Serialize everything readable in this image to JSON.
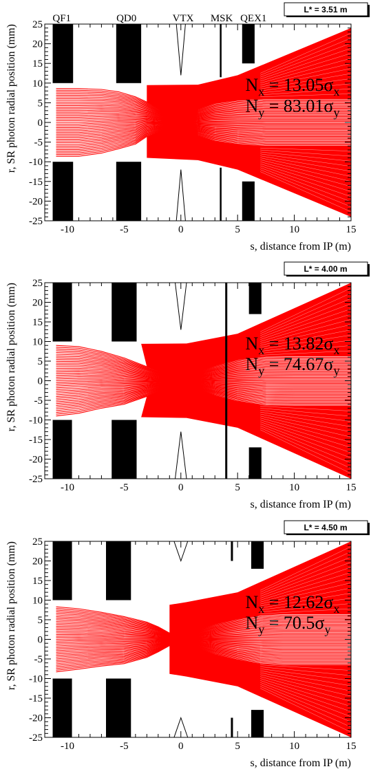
{
  "chart_data": [
    {
      "type": "line",
      "lstar_label": "L* = 3.51 m",
      "xlabel": "s, distance from IP (m)",
      "ylabel": "r, SR photon radial position (mm)",
      "xlim": [
        -12,
        15
      ],
      "ylim": [
        -25,
        25
      ],
      "x_ticks": [
        -10,
        -5,
        0,
        5,
        10,
        15
      ],
      "y_ticks": [
        -25,
        -20,
        -15,
        -10,
        -5,
        0,
        5,
        10,
        15,
        20,
        25
      ],
      "grid": false,
      "magnet_labels": [
        {
          "text": "QF1",
          "x": -10.5
        },
        {
          "text": "QD0",
          "x": -4.8
        },
        {
          "text": "VTX",
          "x": 0.2
        },
        {
          "text": "MSK",
          "x": 3.6
        },
        {
          "text": "QEX1",
          "x": 6.4
        }
      ],
      "magnets": [
        {
          "name": "QF1",
          "s_start": -11.3,
          "s_end": -9.5,
          "aperture_mm": 10
        },
        {
          "name": "QD0",
          "s_start": -5.7,
          "s_end": -3.5,
          "aperture_mm": 10
        },
        {
          "name": "QEX1",
          "s_start": 5.4,
          "s_end": 6.5,
          "aperture_mm": 15
        }
      ],
      "vtx_profile": {
        "s": [
          -0.4,
          0,
          0.4
        ],
        "aperture_mm": [
          25,
          12,
          25
        ]
      },
      "msk": {
        "s": 3.51
      },
      "envelope_top": {
        "s": [
          -11,
          -9,
          -7,
          -5.5,
          -4,
          -3,
          -2,
          -1,
          0,
          1,
          1.5,
          3,
          5,
          7.5,
          10,
          15
        ],
        "r_mm": [
          8.6,
          8.6,
          8.4,
          7.8,
          6.5,
          5.2,
          3.5,
          1.8,
          0,
          1.8,
          3.4,
          4.8,
          5.6,
          6,
          6,
          6
        ]
      },
      "envelope_bottom": {
        "s": [
          -11,
          -9,
          -7,
          -5.5,
          -4,
          -3,
          -2,
          -1,
          0,
          1,
          1.5,
          3,
          5,
          7.5,
          10,
          15
        ],
        "r_mm": [
          -8.6,
          -8.6,
          -7.8,
          -6.7,
          -5.5,
          -3.6,
          -2.5,
          -1.2,
          0,
          -1.8,
          -3.4,
          -4.7,
          -5.5,
          -6,
          -6,
          -6
        ]
      },
      "fan_top": {
        "s": [
          -3,
          1.5,
          5,
          15
        ],
        "r_mm": [
          9.5,
          9.6,
          12,
          24
        ]
      },
      "fan_bottom": {
        "s": [
          -3,
          1.5,
          5,
          15
        ],
        "r_mm": [
          -9,
          -9.6,
          -12,
          -24
        ]
      },
      "annotation": {
        "nx_value": "13.05",
        "ny_value": "83.01"
      }
    },
    {
      "type": "line",
      "lstar_label": "L* = 4.00 m",
      "xlabel": "s, distance from IP (m)",
      "ylabel": "r, SR photon radial position (mm)",
      "xlim": [
        -12,
        15
      ],
      "ylim": [
        -25,
        25
      ],
      "x_ticks": [
        -10,
        -5,
        0,
        5,
        10,
        15
      ],
      "y_ticks": [
        -25,
        -20,
        -15,
        -10,
        -5,
        0,
        5,
        10,
        15,
        20,
        25
      ],
      "grid": false,
      "magnet_labels": [],
      "magnets": [
        {
          "name": "QF1",
          "s_start": -11.3,
          "s_end": -9.6,
          "aperture_mm": 10
        },
        {
          "name": "QD0",
          "s_start": -6.1,
          "s_end": -3.9,
          "aperture_mm": 10
        },
        {
          "name": "QEX1",
          "s_start": 6.0,
          "s_end": 7.1,
          "aperture_mm": 17
        }
      ],
      "vtx_profile": {
        "s": [
          -0.5,
          0,
          0.5
        ],
        "aperture_mm": [
          25,
          13,
          25
        ]
      },
      "msk": {
        "s": 4.0
      },
      "envelope_top": {
        "s": [
          -11,
          -9,
          -7,
          -5,
          -3,
          -2,
          -1,
          0,
          1,
          2,
          3,
          5,
          7.5,
          10,
          15
        ],
        "r_mm": [
          9,
          8.7,
          7.5,
          5.8,
          3.6,
          2.4,
          1.2,
          0,
          1.2,
          2.8,
          3.8,
          5.3,
          6.2,
          6.3,
          6.3
        ]
      },
      "envelope_bottom": {
        "s": [
          -11,
          -9,
          -7,
          -5,
          -3,
          -2,
          -1,
          0,
          1,
          2,
          3,
          5,
          7.5,
          10,
          15
        ],
        "r_mm": [
          -9,
          -8.3,
          -7,
          -6,
          -4,
          -2.8,
          -1.4,
          0,
          -1.3,
          -2.7,
          -3.8,
          -5.2,
          -6.3,
          -6.4,
          -6.4
        ]
      },
      "fan_top": {
        "s": [
          -3.5,
          0.5,
          5,
          15
        ],
        "r_mm": [
          9.4,
          9.5,
          12,
          25
        ]
      },
      "fan_bottom": {
        "s": [
          -3.5,
          0.5,
          5,
          15
        ],
        "r_mm": [
          -9.3,
          -9.5,
          -12,
          -25
        ]
      },
      "annotation": {
        "nx_value": "13.82",
        "ny_value": "74.67"
      }
    },
    {
      "type": "line",
      "lstar_label": "L* = 4.50 m",
      "xlabel": "s, distance from IP (m)",
      "ylabel": "r, SR photon radial position (mm)",
      "xlim": [
        -12,
        15
      ],
      "ylim": [
        -25,
        25
      ],
      "x_ticks": [
        -10,
        -5,
        0,
        5,
        10,
        15
      ],
      "y_ticks": [
        -25,
        -20,
        -15,
        -10,
        -5,
        0,
        5,
        10,
        15,
        20,
        25
      ],
      "grid": false,
      "magnet_labels": [],
      "magnets": [
        {
          "name": "QF1",
          "s_start": -11.3,
          "s_end": -9.6,
          "aperture_mm": 10
        },
        {
          "name": "QD0",
          "s_start": -6.6,
          "s_end": -4.4,
          "aperture_mm": 10
        },
        {
          "name": "QEX1",
          "s_start": 6.2,
          "s_end": 7.3,
          "aperture_mm": 18
        }
      ],
      "vtx_profile": {
        "s": [
          -0.6,
          0,
          0.6
        ],
        "aperture_mm": [
          25,
          20,
          25
        ]
      },
      "msk": {
        "s": 4.5
      },
      "envelope_top": {
        "s": [
          -11,
          -9,
          -7,
          -5,
          -3,
          -2,
          -1,
          0,
          1,
          2,
          3,
          5,
          7,
          9,
          15
        ],
        "r_mm": [
          8.3,
          7.8,
          6.9,
          5.8,
          4.4,
          3.2,
          1.6,
          0,
          1.6,
          2.9,
          3.9,
          5.1,
          6.1,
          6.5,
          6.5
        ]
      },
      "envelope_bottom": {
        "s": [
          -11,
          -9,
          -7,
          -5,
          -3,
          -2,
          -1,
          0,
          1,
          2,
          3,
          5,
          7,
          9,
          15
        ],
        "r_mm": [
          -8.3,
          -7.6,
          -6.8,
          -6.2,
          -4.6,
          -3.2,
          -1.6,
          0,
          -1.6,
          -2.9,
          -3.9,
          -5.2,
          -6.2,
          -6.6,
          -6.6
        ]
      },
      "fan_top": {
        "s": [
          -1,
          0.5,
          5,
          15
        ],
        "r_mm": [
          8.8,
          9.5,
          12,
          25
        ]
      },
      "fan_bottom": {
        "s": [
          -1,
          0.5,
          5,
          15
        ],
        "r_mm": [
          -8.8,
          -9.5,
          -12,
          -25
        ]
      },
      "annotation": {
        "nx_value": "12.62",
        "ny_value": "70.5"
      }
    }
  ],
  "colors": {
    "fan": "#ff0000",
    "magnet": "#000000",
    "axis": "#000000"
  },
  "symbols": {
    "nx_prefix": "N",
    "nx_sub": "x",
    "eq": " = ",
    "sigma": "σ"
  }
}
